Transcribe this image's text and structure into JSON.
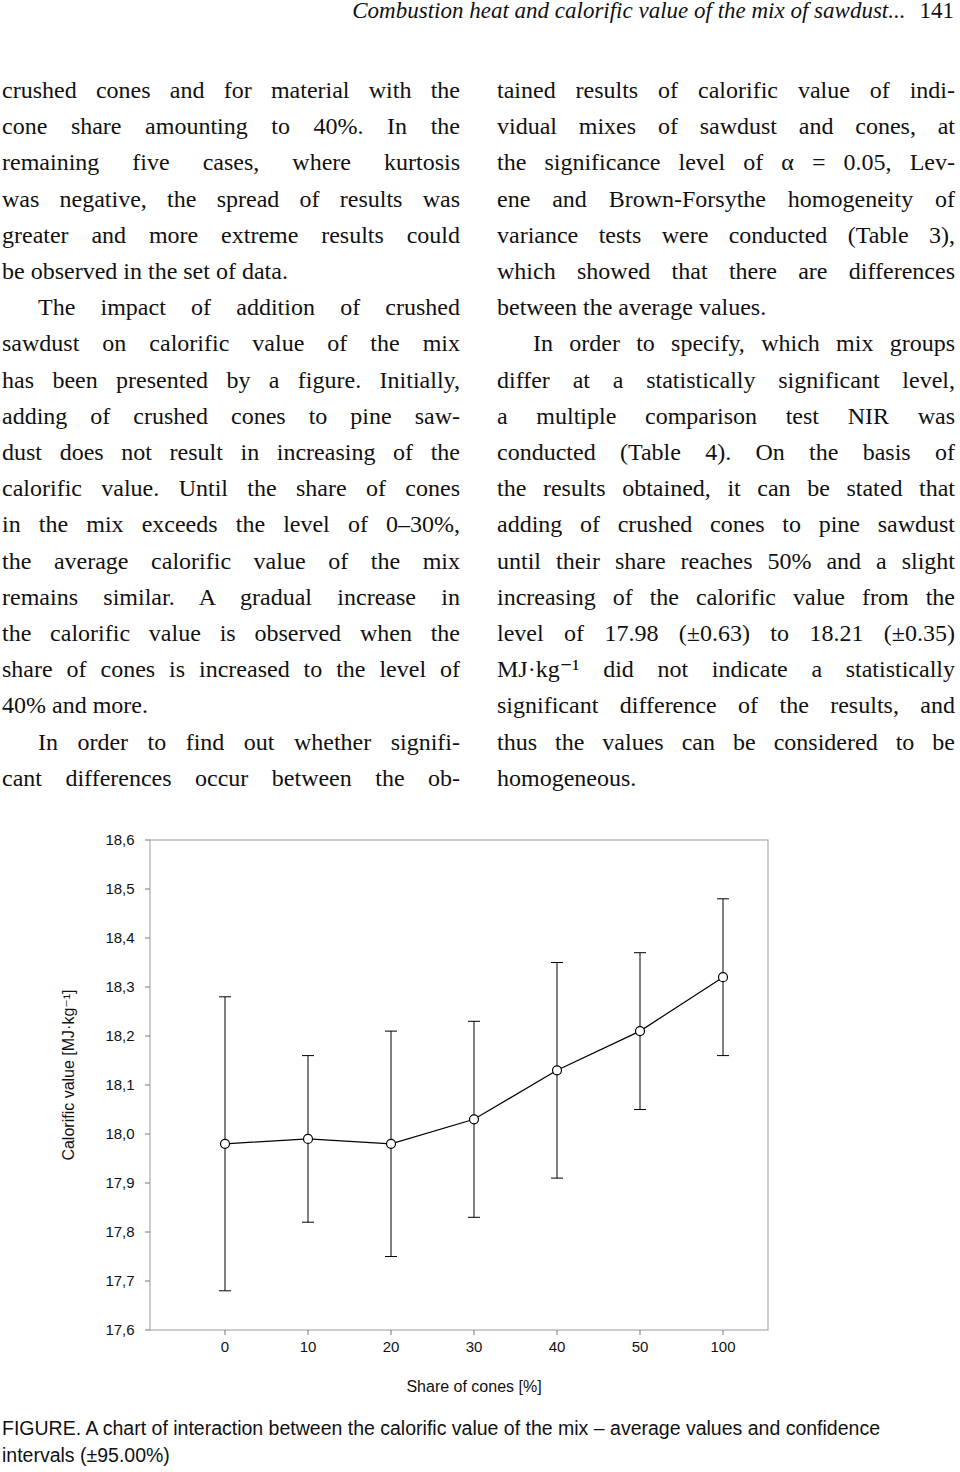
{
  "header": {
    "title": "Combustion heat and calorific value of the mix of sawdust...",
    "page": "141"
  },
  "columns": [
    {
      "paragraphs": [
        {
          "lines": [
            "crushed cones and for material with the",
            "cone share amounting to 40%. In the",
            "remaining five cases, where kurtosis",
            "was negative, the spread of results was",
            "greater and more extreme results could",
            "be observed in the set of data."
          ]
        },
        {
          "lines": [
            "The impact of addition of crushed",
            "sawdust on calorific value of the mix",
            "has been presented by a figure. Initially,",
            "adding of crushed cones to pine saw-",
            "dust does not result in increasing of the",
            "calorific value. Until the share of cones",
            "in the mix exceeds the level of 0–30%,",
            "the average calorific value of the mix",
            "remains similar. A gradual increase in",
            "the calorific value is observed when the",
            "share of cones is increased to the level of",
            "40% and more."
          ]
        },
        {
          "lines": [
            "In order to find out whether signifi-",
            "cant differences occur between the ob-"
          ]
        }
      ]
    },
    {
      "paragraphs": [
        {
          "lines": [
            "tained results of calorific value of indi-",
            "vidual mixes of sawdust and cones, at",
            "the significance level of α = 0.05, Lev-",
            "ene and Brown-Forsythe homogeneity of",
            "variance tests were conducted (Table 3),",
            "which showed that there are differences",
            "between the average values."
          ]
        },
        {
          "lines": [
            "In order to specify, which mix groups",
            "differ at a statistically significant level,",
            "a multiple comparison test NIR was",
            "conducted (Table 4). On the basis of",
            "the results obtained, it can be stated that",
            "adding of crushed cones to pine sawdust",
            "until their share reaches 50% and a slight",
            "increasing of the calorific value from the",
            "level of 17.98 (±0.63) to 18.21 (±0.35)",
            "MJ·kg⁻¹ did not indicate a statistically",
            "significant difference of the results, and",
            "thus the values can be considered to be",
            "homogeneous."
          ]
        }
      ]
    }
  ],
  "chart_data": {
    "type": "line",
    "x_label": "Share of cones [%]",
    "y_label": "Calorific value [MJ·kg⁻¹]",
    "categories": [
      "0",
      "10",
      "20",
      "30",
      "40",
      "50",
      "100"
    ],
    "values": [
      17.98,
      17.99,
      17.98,
      18.03,
      18.13,
      18.21,
      18.32
    ],
    "errors": [
      0.3,
      0.17,
      0.23,
      0.2,
      0.22,
      0.16,
      0.16
    ],
    "ylim": [
      17.6,
      18.6
    ],
    "yticks": [
      {
        "value": 17.6,
        "label": "17,6"
      },
      {
        "value": 17.7,
        "label": "17,7"
      },
      {
        "value": 17.8,
        "label": "17,8"
      },
      {
        "value": 17.9,
        "label": "17,9"
      },
      {
        "value": 18.0,
        "label": "18,0"
      },
      {
        "value": 18.1,
        "label": "18,1"
      },
      {
        "value": 18.2,
        "label": "18,2"
      },
      {
        "value": 18.3,
        "label": "18,3"
      },
      {
        "value": 18.4,
        "label": "18,4"
      },
      {
        "value": 18.5,
        "label": "18,5"
      },
      {
        "value": 18.6,
        "label": "18,6"
      }
    ],
    "color": "#000000",
    "marker": "circle",
    "grid": false
  },
  "caption": {
    "lines": [
      "FIGURE. A chart of interaction between the calorific value of the mix – average values and confidence",
      "intervals (±95.00%)"
    ]
  }
}
